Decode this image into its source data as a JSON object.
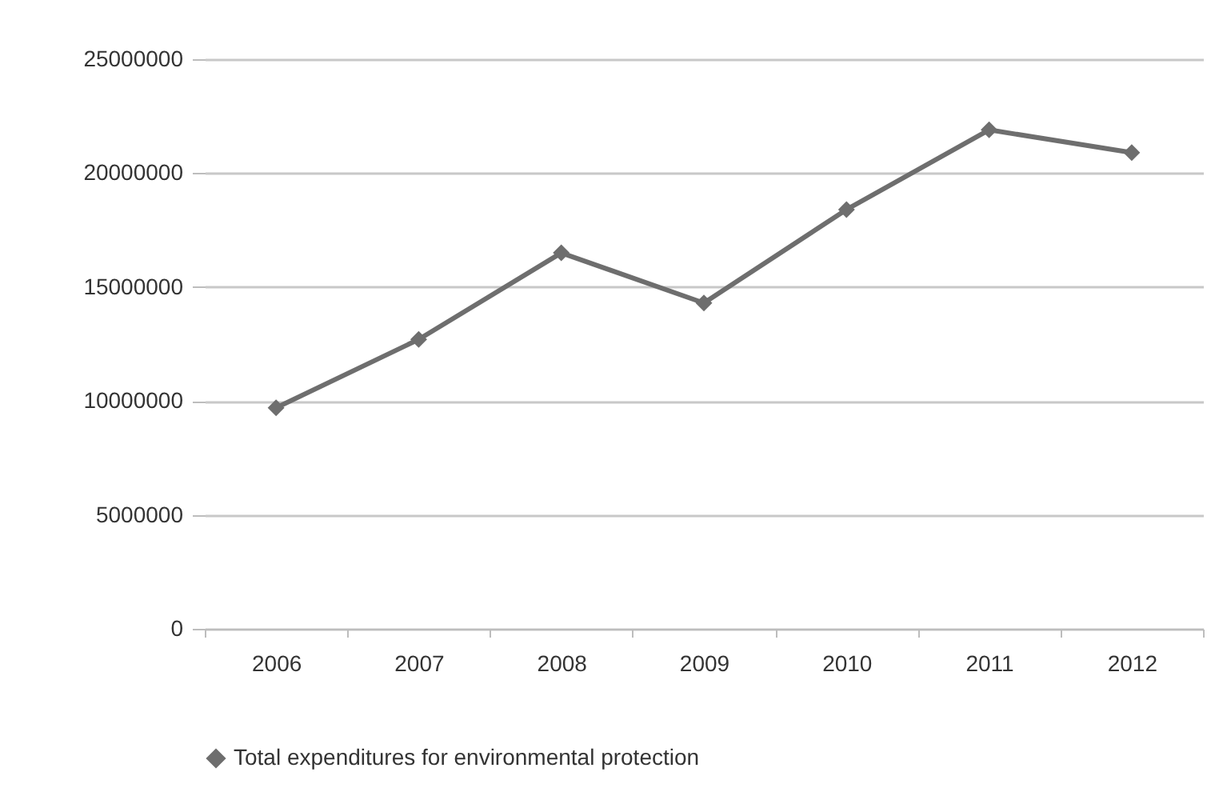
{
  "chart_data": {
    "type": "line",
    "categories": [
      "2006",
      "2007",
      "2008",
      "2009",
      "2010",
      "2011",
      "2012"
    ],
    "series": [
      {
        "name": "Total expenditures for environmental protection",
        "color": "#6e6e6e",
        "values": [
          9700000,
          12700000,
          16500000,
          14300000,
          18400000,
          21900000,
          20900000
        ]
      }
    ],
    "ylim": [
      0,
      25000000
    ],
    "yticks": [
      0,
      5000000,
      10000000,
      15000000,
      20000000,
      25000000
    ],
    "grid": "y",
    "legend": "bottom",
    "marker": "diamond",
    "line_style": "solid"
  }
}
